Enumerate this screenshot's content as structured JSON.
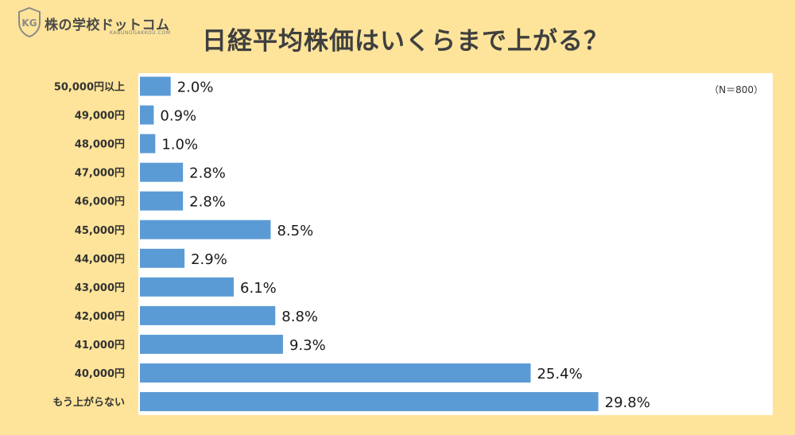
{
  "brand": {
    "name": "株の学校ドットコム",
    "sub": "KABUNOGAKKOU.COM",
    "badge_text": "KG"
  },
  "chart_data": {
    "type": "bar",
    "orientation": "horizontal",
    "title": "日経平均株価はいくらまで上がる？",
    "note": "（N＝800）",
    "categories": [
      "50,000円以上",
      "49,000円",
      "48,000円",
      "47,000円",
      "46,000円",
      "45,000円",
      "44,000円",
      "43,000円",
      "42,000円",
      "41,000円",
      "40,000円",
      "もう上がらない"
    ],
    "values": [
      2.0,
      0.9,
      1.0,
      2.8,
      2.8,
      8.5,
      2.9,
      6.1,
      8.8,
      9.3,
      25.4,
      29.8
    ],
    "value_labels": [
      "2.0%",
      "0.9%",
      "1.0%",
      "2.8%",
      "2.8%",
      "8.5%",
      "2.9%",
      "6.1%",
      "8.8%",
      "9.3%",
      "25.4%",
      "29.8%"
    ],
    "bar_color": "#5b9bd5",
    "background_color": "#fde49a",
    "plot_background": "#ffffff",
    "xlim": [
      0,
      32
    ]
  }
}
